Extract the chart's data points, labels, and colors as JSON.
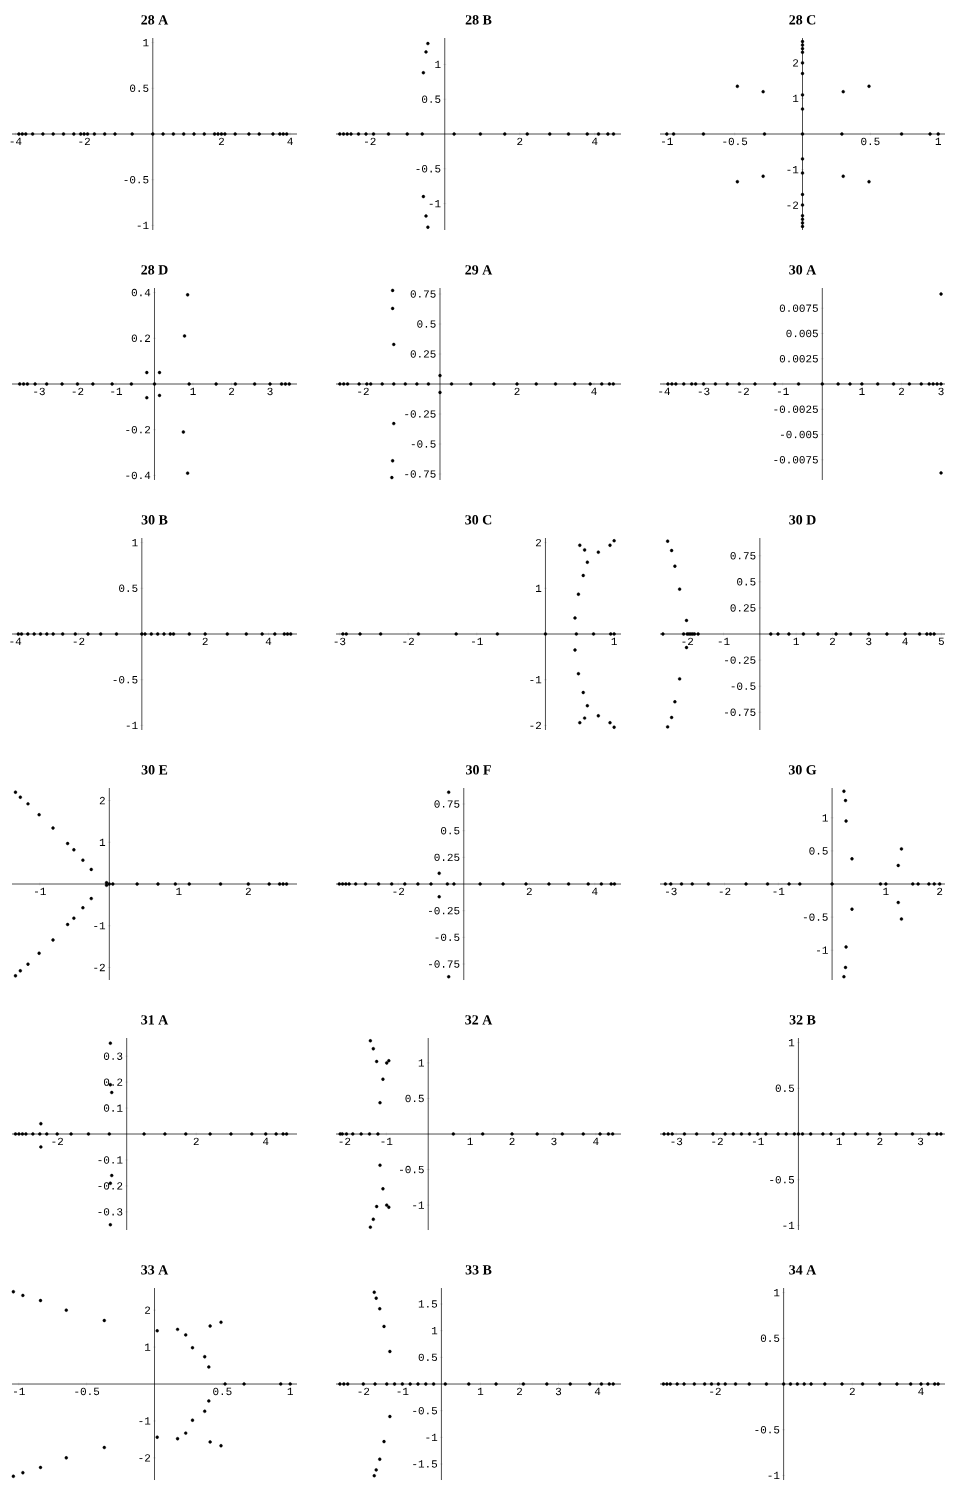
{
  "chart_data": [
    {
      "type": "scatter",
      "title": "28 A",
      "color": "#000000",
      "marker": "circle",
      "xlim": [
        -4.1,
        4.2
      ],
      "ylim": [
        -1.05,
        1.05
      ],
      "xticks": [
        -4,
        -2,
        2,
        4
      ],
      "yticks": [
        -1,
        -0.5,
        0.5,
        1
      ],
      "x": [
        -3.9,
        -3.8,
        -3.7,
        -3.5,
        -3.2,
        -2.9,
        -2.6,
        -2.3,
        -2.1,
        -2.0,
        -1.9,
        -1.7,
        -1.4,
        -1.1,
        -0.6,
        0,
        0.3,
        0.6,
        0.9,
        1.2,
        1.5,
        1.8,
        1.9,
        2.0,
        2.1,
        2.4,
        2.8,
        3.1,
        3.5,
        3.7,
        3.8,
        3.9
      ],
      "values": [
        0,
        0,
        0,
        0,
        0,
        0,
        0,
        0,
        0,
        0,
        0,
        0,
        0,
        0,
        0,
        0,
        0,
        0,
        0,
        0,
        0,
        0,
        0,
        0,
        0,
        0,
        0,
        0,
        0,
        0,
        0,
        0
      ]
    },
    {
      "type": "scatter",
      "title": "28 B",
      "color": "#000000",
      "marker": "circle",
      "xlim": [
        -2.9,
        4.7
      ],
      "ylim": [
        -1.38,
        1.38
      ],
      "xticks": [
        -2,
        2,
        4
      ],
      "yticks": [
        -1,
        -0.5,
        0.5,
        1
      ],
      "x": [
        -2.8,
        -2.7,
        -2.6,
        -2.5,
        -2.3,
        -2.1,
        -1.9,
        -1.5,
        -1.0,
        -0.6,
        0.25,
        0.95,
        1.6,
        2.2,
        2.8,
        3.3,
        3.8,
        4.1,
        4.35,
        4.5,
        -0.45,
        -0.5,
        -0.57,
        -0.45,
        -0.5,
        -0.57
      ],
      "values": [
        0,
        0,
        0,
        0,
        0,
        0,
        0,
        0,
        0,
        0,
        0,
        0,
        0,
        0,
        0,
        0,
        0,
        0,
        0,
        0,
        1.3,
        1.18,
        0.88,
        -1.34,
        -1.18,
        -0.9
      ]
    },
    {
      "type": "scatter",
      "title": "28 C",
      "color": "#000000",
      "marker": "circle",
      "xlim": [
        -1.05,
        1.05
      ],
      "ylim": [
        -2.7,
        2.7
      ],
      "xticks": [
        -1,
        -0.5,
        0.5,
        1
      ],
      "yticks": [
        -2,
        -1,
        1,
        2
      ],
      "x": [
        -1.0,
        -0.95,
        -0.73,
        -0.28,
        0,
        0.29,
        0.73,
        0.94,
        1.0,
        -0.48,
        -0.29,
        0.3,
        0.49,
        -0.48,
        -0.29,
        0.3,
        0.49,
        0,
        0,
        0,
        0,
        0,
        0,
        0,
        0,
        0,
        0,
        0,
        0,
        0,
        0,
        0,
        0
      ],
      "values": [
        0,
        0,
        0,
        0,
        0,
        0,
        0,
        0,
        0,
        1.34,
        1.19,
        1.19,
        1.34,
        -1.34,
        -1.19,
        -1.19,
        -1.34,
        2.6,
        2.5,
        2.4,
        2.3,
        2.0,
        1.7,
        1.1,
        0.7,
        -0.7,
        -1.1,
        -1.7,
        -2.0,
        -2.3,
        -2.4,
        -2.5,
        -2.6
      ]
    },
    {
      "type": "scatter",
      "title": "28 D",
      "color": "#000000",
      "marker": "circle",
      "xlim": [
        -3.7,
        3.7
      ],
      "ylim": [
        -0.42,
        0.42
      ],
      "xticks": [
        -3,
        -2,
        -1,
        1,
        2,
        3
      ],
      "yticks": [
        -0.4,
        -0.2,
        0.2,
        0.4
      ],
      "x": [
        -3.5,
        -3.4,
        -3.3,
        -3.1,
        -2.8,
        -2.4,
        -2.0,
        -1.6,
        -1.1,
        -0.6,
        0,
        0.9,
        1.6,
        2.1,
        2.6,
        3.0,
        3.3,
        3.4,
        3.5,
        0.86,
        0.78,
        -0.2,
        0.13,
        -0.2,
        0.13,
        0.75,
        0.86
      ],
      "values": [
        0,
        0,
        0,
        0,
        0,
        0,
        0,
        0,
        0,
        0,
        0,
        0,
        0,
        0,
        0,
        0,
        0,
        0,
        0,
        0.39,
        0.21,
        0.05,
        0.05,
        -0.06,
        -0.05,
        -0.21,
        -0.39
      ]
    },
    {
      "type": "scatter",
      "title": "29 A",
      "color": "#000000",
      "marker": "circle",
      "xlim": [
        -2.7,
        4.7
      ],
      "ylim": [
        -0.8,
        0.8
      ],
      "xticks": [
        -2,
        2,
        4
      ],
      "yticks": [
        -0.75,
        -0.5,
        -0.25,
        0.25,
        0.5,
        0.75
      ],
      "x": [
        -2.6,
        -2.5,
        -2.4,
        -2.1,
        -1.9,
        -1.8,
        -1.5,
        -1.2,
        -0.9,
        -0.6,
        -0.3,
        0.3,
        0.8,
        1.4,
        2.0,
        2.5,
        3.0,
        3.5,
        3.9,
        4.2,
        4.4,
        4.5,
        -1.23,
        -1.23,
        -1.2,
        0,
        0,
        -1.2,
        -1.23,
        -1.25
      ],
      "values": [
        0,
        0,
        0,
        0,
        0,
        0,
        0,
        0,
        0,
        0,
        0,
        0,
        0,
        0,
        0,
        0,
        0,
        0,
        0,
        0,
        0,
        0,
        0.78,
        0.63,
        0.33,
        0.07,
        -0.07,
        -0.33,
        -0.64,
        -0.78
      ]
    },
    {
      "type": "scatter",
      "title": "30 A",
      "color": "#000000",
      "marker": "circle",
      "xlim": [
        -4.1,
        3.1
      ],
      "ylim": [
        -0.0095,
        0.0095
      ],
      "xticks": [
        -4,
        -3,
        -2,
        -1,
        1,
        2,
        3
      ],
      "yticks": [
        -0.0075,
        -0.005,
        -0.0025,
        0.0025,
        0.005,
        0.0075
      ],
      "x": [
        -3.9,
        -3.8,
        -3.7,
        -3.5,
        -3.3,
        -3.2,
        -3.0,
        -2.7,
        -2.4,
        -2.1,
        -1.7,
        -1.2,
        -0.6,
        0,
        0.4,
        0.7,
        1.0,
        1.4,
        1.8,
        2.2,
        2.5,
        2.7,
        2.8,
        2.9,
        3.0,
        3.0,
        3.0
      ],
      "values": [
        0,
        0,
        0,
        0,
        0,
        0,
        0,
        0,
        0,
        0,
        0,
        0,
        0,
        0,
        0,
        0,
        0,
        0,
        0,
        0,
        0,
        0,
        0,
        0,
        0,
        0.0089,
        -0.0088
      ]
    },
    {
      "type": "scatter",
      "title": "30 B",
      "color": "#000000",
      "marker": "circle",
      "xlim": [
        -4.1,
        4.9
      ],
      "ylim": [
        -1.05,
        1.05
      ],
      "xticks": [
        -4,
        -2,
        2,
        4
      ],
      "yticks": [
        -1,
        -0.5,
        0.5,
        1
      ],
      "x": [
        -3.9,
        -3.8,
        -3.6,
        -3.4,
        -3.2,
        -3.0,
        -2.8,
        -2.5,
        -2.1,
        -1.7,
        -1.3,
        -0.8,
        0,
        0.1,
        0.3,
        0.5,
        0.7,
        0.9,
        1.0,
        1.5,
        2.0,
        2.7,
        3.3,
        3.8,
        4.2,
        4.5,
        4.6,
        4.7
      ],
      "values": [
        0,
        0,
        0,
        0,
        0,
        0,
        0,
        0,
        0,
        0,
        0,
        0,
        0,
        0,
        0,
        0,
        0,
        0,
        0,
        0,
        0,
        0,
        0,
        0,
        0,
        0,
        0,
        0
      ]
    },
    {
      "type": "scatter",
      "title": "30 C",
      "color": "#000000",
      "marker": "circle",
      "xlim": [
        -3.05,
        1.1
      ],
      "ylim": [
        -2.1,
        2.1
      ],
      "xticks": [
        -3,
        -2,
        -1,
        1
      ],
      "yticks": [
        -2,
        -1,
        1,
        2
      ],
      "x": [
        -2.95,
        -2.9,
        -2.7,
        -2.4,
        -1.85,
        -1.3,
        -0.7,
        0,
        0.45,
        0.7,
        0.95,
        1.0,
        0.5,
        0.57,
        0.61,
        0.55,
        0.48,
        0.43,
        0.77,
        0.94,
        1.0,
        0.5,
        0.57,
        0.61,
        0.55,
        0.48,
        0.43,
        0.77,
        0.94,
        1.0
      ],
      "values": [
        0,
        0,
        0,
        0,
        0,
        0,
        0,
        0,
        0,
        0,
        0,
        0,
        1.94,
        1.84,
        1.57,
        1.28,
        0.87,
        0.35,
        1.79,
        1.94,
        2.04,
        -1.94,
        -1.84,
        -1.57,
        -1.28,
        -0.87,
        -0.35,
        -1.79,
        -1.94,
        -2.04
      ]
    },
    {
      "type": "scatter",
      "title": "30 D",
      "color": "#000000",
      "marker": "circle",
      "xlim": [
        -2.75,
        5.1
      ],
      "ylim": [
        -0.92,
        0.92
      ],
      "xticks": [
        -2,
        -1,
        1,
        2,
        3,
        4,
        5
      ],
      "yticks": [
        -0.75,
        -0.5,
        -0.25,
        0.25,
        0.5,
        0.75
      ],
      "x": [
        -2.67,
        -2.1,
        -2.0,
        -1.95,
        -1.9,
        -1.85,
        -1.8,
        -1.7,
        0.3,
        0.5,
        0.8,
        1.2,
        1.6,
        2.1,
        2.5,
        3.0,
        3.5,
        4.0,
        4.4,
        4.6,
        4.7,
        4.8,
        -2.54,
        -2.43,
        -2.34,
        -2.21,
        -2.02,
        -2.54,
        -2.43,
        -2.34,
        -2.21,
        -2.02
      ],
      "values": [
        0,
        0,
        0,
        0,
        0,
        0,
        0,
        0,
        0,
        0,
        0,
        0,
        0,
        0,
        0,
        0,
        0,
        0,
        0,
        0,
        0,
        0,
        0.89,
        0.8,
        0.65,
        0.43,
        0.13,
        -0.89,
        -0.8,
        -0.65,
        -0.43,
        -0.13
      ]
    },
    {
      "type": "scatter",
      "title": "30 E",
      "color": "#000000",
      "marker": "circle",
      "xlim": [
        -1.4,
        2.7
      ],
      "ylim": [
        -2.3,
        2.3
      ],
      "xticks": [
        -1,
        1,
        2
      ],
      "yticks": [
        -2,
        -1,
        1,
        2
      ],
      "x": [
        0,
        0.05,
        0.4,
        0.7,
        0.95,
        1.15,
        1.6,
        2.0,
        2.3,
        2.45,
        2.5,
        2.55,
        -1.35,
        -1.28,
        -1.17,
        -1.01,
        -0.81,
        -0.6,
        -0.51,
        -0.38,
        -0.26,
        -0.04,
        -1.35,
        -1.28,
        -1.17,
        -1.01,
        -0.81,
        -0.6,
        -0.51,
        -0.38,
        -0.26,
        -0.04
      ],
      "values": [
        0,
        0,
        0,
        0,
        0,
        0,
        0,
        0,
        0,
        0,
        0,
        0,
        2.2,
        2.08,
        1.92,
        1.66,
        1.34,
        0.97,
        0.82,
        0.57,
        0.35,
        0.03,
        -2.2,
        -2.08,
        -1.92,
        -1.66,
        -1.34,
        -0.97,
        -0.82,
        -0.57,
        -0.35,
        -0.03
      ]
    },
    {
      "type": "scatter",
      "title": "30 F",
      "color": "#000000",
      "marker": "circle",
      "xlim": [
        -3.9,
        4.8
      ],
      "ylim": [
        -0.9,
        0.9
      ],
      "xticks": [
        -2,
        2,
        4
      ],
      "yticks": [
        -0.75,
        -0.5,
        -0.25,
        0.25,
        0.5,
        0.75
      ],
      "x": [
        -3.8,
        -3.7,
        -3.6,
        -3.5,
        -3.3,
        -3.0,
        -2.6,
        -2.2,
        -1.8,
        -1.4,
        -1.0,
        -0.5,
        -0.3,
        0.5,
        1.2,
        1.9,
        2.6,
        3.2,
        3.8,
        4.2,
        4.5,
        4.6,
        -0.46,
        -0.75,
        -0.75,
        -0.46
      ],
      "values": [
        0,
        0,
        0,
        0,
        0,
        0,
        0,
        0,
        0,
        0,
        0,
        0,
        0,
        0,
        0,
        0,
        0,
        0,
        0,
        0,
        0,
        0,
        0.86,
        0.1,
        -0.12,
        -0.87
      ]
    },
    {
      "type": "scatter",
      "title": "30 G",
      "color": "#000000",
      "marker": "circle",
      "xlim": [
        -3.2,
        2.1
      ],
      "ylim": [
        -1.45,
        1.45
      ],
      "xticks": [
        -3,
        -2,
        -1,
        1,
        2
      ],
      "yticks": [
        -1,
        -0.5,
        0.5,
        1
      ],
      "x": [
        -3.1,
        -3.0,
        -2.8,
        -2.6,
        -2.3,
        -1.6,
        -1.2,
        -0.8,
        -0.6,
        0,
        0.9,
        1.0,
        1.5,
        1.6,
        1.8,
        1.9,
        2.0,
        0.22,
        0.25,
        0.26,
        0.37,
        1.29,
        1.23,
        0.22,
        0.25,
        0.26,
        0.37,
        1.29,
        1.23
      ],
      "values": [
        0,
        0,
        0,
        0,
        0,
        0,
        0,
        0,
        0,
        0,
        0,
        0,
        0,
        0,
        0,
        0,
        0,
        1.4,
        1.26,
        0.95,
        0.38,
        0.53,
        0.28,
        -1.4,
        -1.26,
        -0.95,
        -0.38,
        -0.53,
        -0.28
      ]
    },
    {
      "type": "scatter",
      "title": "31 A",
      "color": "#000000",
      "marker": "circle",
      "xlim": [
        -3.3,
        4.9
      ],
      "ylim": [
        -0.37,
        0.37
      ],
      "xticks": [
        -2,
        2,
        4
      ],
      "yticks": [
        -0.3,
        -0.2,
        -0.1,
        0.1,
        0.2,
        0.3
      ],
      "x": [
        -3.2,
        -3.1,
        -3.0,
        -2.9,
        -2.7,
        -2.5,
        -2.3,
        -2.0,
        -1.6,
        -1.1,
        -0.5,
        0.5,
        1.1,
        1.7,
        2.4,
        3.0,
        3.6,
        4.0,
        4.3,
        4.5,
        4.6,
        -0.47,
        -0.47,
        -0.43,
        -2.47,
        -2.47,
        -0.43,
        -0.47,
        -0.47
      ],
      "values": [
        0,
        0,
        0,
        0,
        0,
        0,
        0,
        0,
        0,
        0,
        0,
        0,
        0,
        0,
        0,
        0,
        0,
        0,
        0,
        0,
        0,
        0.35,
        0.19,
        0.16,
        0.04,
        -0.05,
        -0.16,
        -0.19,
        -0.35
      ]
    },
    {
      "type": "scatter",
      "title": "32 A",
      "color": "#000000",
      "marker": "circle",
      "xlim": [
        -2.2,
        4.6
      ],
      "ylim": [
        -1.35,
        1.35
      ],
      "xticks": [
        -2,
        -1,
        1,
        2,
        3,
        4
      ],
      "yticks": [
        -1,
        -0.5,
        0.5,
        1
      ],
      "x": [
        -2.1,
        -2.05,
        -1.95,
        -1.8,
        -1.6,
        -1.4,
        -1.2,
        0.6,
        1.3,
        2.0,
        2.6,
        3.2,
        3.7,
        4.1,
        4.3,
        4.4,
        -1.38,
        -1.31,
        -1.23,
        -0.99,
        -0.94,
        -1.08,
        -1.15,
        -1.38,
        -1.31,
        -1.23,
        -0.99,
        -0.94,
        -1.08,
        -1.15
      ],
      "values": [
        0,
        0,
        0,
        0,
        0,
        0,
        0,
        0,
        0,
        0,
        0,
        0,
        0,
        0,
        0,
        0,
        1.31,
        1.2,
        1.02,
        1.0,
        1.03,
        0.77,
        0.44,
        -1.31,
        -1.2,
        -1.02,
        -1.0,
        -1.03,
        -0.77,
        -0.44
      ]
    },
    {
      "type": "scatter",
      "title": "32 B",
      "color": "#000000",
      "marker": "circle",
      "xlim": [
        -3.4,
        3.6
      ],
      "ylim": [
        -1.05,
        1.05
      ],
      "xticks": [
        -3,
        -2,
        -1,
        1,
        2,
        3
      ],
      "yticks": [
        -1,
        -0.5,
        0.5,
        1
      ],
      "x": [
        -3.3,
        -3.2,
        -3.1,
        -2.8,
        -2.5,
        -2.1,
        -1.8,
        -1.6,
        -1.4,
        -1.2,
        -1.0,
        -0.8,
        -0.5,
        -0.3,
        -0.1,
        0,
        0.1,
        0.3,
        0.6,
        0.8,
        1.1,
        1.4,
        1.7,
        2.0,
        2.4,
        2.8,
        3.2,
        3.4,
        3.5
      ],
      "values": [
        0,
        0,
        0,
        0,
        0,
        0,
        0,
        0,
        0,
        0,
        0,
        0,
        0,
        0,
        0,
        0,
        0,
        0,
        0,
        0,
        0,
        0,
        0,
        0,
        0,
        0,
        0,
        0,
        0
      ]
    },
    {
      "type": "scatter",
      "title": "33 A",
      "color": "#000000",
      "marker": "circle",
      "xlim": [
        -1.05,
        1.05
      ],
      "ylim": [
        -2.6,
        2.6
      ],
      "xticks": [
        -1,
        -0.5,
        0.5,
        1
      ],
      "yticks": [
        -2,
        -1,
        1,
        2
      ],
      "x": [
        0.52,
        0.66,
        0.93,
        1.0,
        -1.04,
        -0.97,
        -0.84,
        -0.65,
        -0.37,
        0.02,
        0.17,
        0.23,
        0.28,
        0.37,
        0.4,
        0.41,
        0.49,
        -1.04,
        -0.97,
        -0.84,
        -0.65,
        -0.37,
        0.02,
        0.17,
        0.23,
        0.28,
        0.37,
        0.4,
        0.41,
        0.49
      ],
      "values": [
        0,
        0,
        0,
        0,
        2.5,
        2.4,
        2.26,
        2.0,
        1.72,
        1.44,
        1.48,
        1.33,
        0.98,
        0.74,
        0.46,
        1.57,
        1.67,
        -2.5,
        -2.4,
        -2.26,
        -2.0,
        -1.72,
        -1.44,
        -1.48,
        -1.33,
        -0.98,
        -0.74,
        -0.46,
        -1.57,
        -1.67
      ]
    },
    {
      "type": "scatter",
      "title": "33 B",
      "color": "#000000",
      "marker": "circle",
      "xlim": [
        -2.7,
        4.6
      ],
      "ylim": [
        -1.8,
        1.8
      ],
      "xticks": [
        -2,
        -1,
        1,
        2,
        3,
        4
      ],
      "yticks": [
        -1.5,
        -1,
        -0.5,
        0.5,
        1,
        1.5
      ],
      "x": [
        -2.6,
        -2.5,
        -2.4,
        -2.0,
        -1.7,
        -1.4,
        -1.2,
        -1.0,
        -0.8,
        -0.6,
        -0.4,
        -0.2,
        0.1,
        0.7,
        1.4,
        2.1,
        2.7,
        3.3,
        3.8,
        4.1,
        4.3,
        4.4,
        -1.72,
        -1.67,
        -1.58,
        -1.47,
        -1.32,
        -1.72,
        -1.67,
        -1.58,
        -1.47,
        -1.32
      ],
      "values": [
        0,
        0,
        0,
        0,
        0,
        0,
        0,
        0,
        0,
        0,
        0,
        0,
        0,
        0,
        0,
        0,
        0,
        0,
        0,
        0,
        0,
        0,
        1.72,
        1.61,
        1.41,
        1.08,
        0.61,
        -1.72,
        -1.61,
        -1.41,
        -1.08,
        -0.61
      ]
    },
    {
      "type": "scatter",
      "title": "34 A",
      "color": "#000000",
      "marker": "circle",
      "xlim": [
        -3.6,
        4.7
      ],
      "ylim": [
        -1.05,
        1.05
      ],
      "xticks": [
        -2,
        2,
        4
      ],
      "yticks": [
        -1,
        -0.5,
        0.5,
        1
      ],
      "x": [
        -3.5,
        -3.4,
        -3.3,
        -3.1,
        -2.9,
        -2.6,
        -2.3,
        -2.1,
        -1.9,
        -1.7,
        -1.4,
        -1.0,
        -0.5,
        0,
        0.2,
        0.4,
        0.6,
        0.8,
        1.2,
        1.7,
        2.3,
        2.8,
        3.3,
        3.7,
        4.0,
        4.2,
        4.4,
        4.5
      ],
      "values": [
        0,
        0,
        0,
        0,
        0,
        0,
        0,
        0,
        0,
        0,
        0,
        0,
        0,
        0,
        0,
        0,
        0,
        0,
        0,
        0,
        0,
        0,
        0,
        0,
        0,
        0,
        0,
        0
      ]
    }
  ]
}
